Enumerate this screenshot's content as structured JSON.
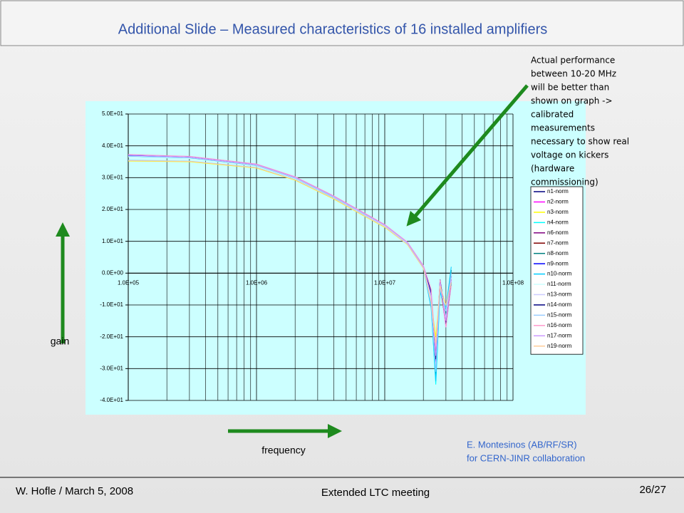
{
  "slide": {
    "title": "Additional Slide – Measured characteristics of 16 installed amplifiers",
    "gain_label": "gain",
    "frequency_label": "frequency",
    "credit": [
      "E. Montesinos (AB/RF/SR)",
      "for CERN-JINR collaboration"
    ],
    "footer_left": "W. Hofle / March 5, 2008",
    "footer_center": "Extended LTC meeting",
    "footer_right": "26/27",
    "annotation": [
      "Actual performance",
      "between 10-20 MHz",
      "will be better than",
      "shown on graph ->",
      "calibrated",
      "measurements",
      "necessary to show real",
      "voltage on kickers",
      "(hardware",
      "commissioning)"
    ]
  },
  "chart_data": {
    "type": "line",
    "xscale": "log",
    "grid": true,
    "legend": "right",
    "x": [
      100000,
      300000,
      1000000,
      2000000,
      4000000,
      7000000,
      10000000,
      15000000,
      20000000,
      23000000,
      25000000,
      27000000,
      30000000,
      33000000
    ],
    "xlim": [
      100000,
      100000000
    ],
    "xticks": [
      {
        "value": 100000,
        "label": "1.0E+05"
      },
      {
        "value": 1000000,
        "label": "1.0E+06"
      },
      {
        "value": 10000000,
        "label": "1.0E+07"
      },
      {
        "value": 100000000,
        "label": "1.0E+08"
      }
    ],
    "ylim": [
      -40,
      50
    ],
    "yticks": [
      {
        "value": 50,
        "label": "5.0E+01"
      },
      {
        "value": 40,
        "label": "4.0E+01"
      },
      {
        "value": 30,
        "label": "3.0E+01"
      },
      {
        "value": 20,
        "label": "2.0E+01"
      },
      {
        "value": 10,
        "label": "1.0E+01"
      },
      {
        "value": 0,
        "label": "0.0E+00"
      },
      {
        "value": -10,
        "label": "-1.0E+01"
      },
      {
        "value": -20,
        "label": "-2.0E+01"
      },
      {
        "value": -30,
        "label": "-3.0E+01"
      },
      {
        "value": -40,
        "label": "-4.0E+01"
      }
    ],
    "series": [
      {
        "name": "n1-norm",
        "color": "#000080",
        "values": [
          37,
          36.4,
          34,
          30,
          24,
          18.5,
          15,
          9.5,
          2,
          -8,
          -30,
          -4,
          -15,
          -1
        ]
      },
      {
        "name": "n2-norm",
        "color": "#ff00ff",
        "values": [
          37.2,
          36.6,
          34.2,
          30.2,
          24.2,
          18.7,
          15.2,
          9.7,
          2.3,
          -6,
          -25,
          -3,
          -17,
          -2
        ]
      },
      {
        "name": "n3-norm",
        "color": "#ffff00",
        "values": [
          35.2,
          35,
          33,
          29.2,
          23.3,
          17.8,
          14.4,
          9,
          1.5,
          -9,
          -20,
          -5,
          -10,
          -3
        ]
      },
      {
        "name": "n4-norm",
        "color": "#00ffff",
        "values": [
          37,
          36.4,
          34,
          30,
          24,
          18.6,
          15.1,
          9.6,
          2.1,
          -10,
          -35,
          -6,
          -12,
          0
        ]
      },
      {
        "name": "n6-norm",
        "color": "#800080",
        "values": [
          36.8,
          36.2,
          33.8,
          29.8,
          23.8,
          18.4,
          14.9,
          9.4,
          1.8,
          -7,
          -28,
          -2,
          -14,
          -1
        ]
      },
      {
        "name": "n7-norm",
        "color": "#800000",
        "values": [
          37.1,
          36.5,
          34.1,
          30.1,
          24.1,
          18.6,
          15.1,
          9.6,
          2.2,
          -8,
          -27,
          -4,
          -16,
          -2
        ]
      },
      {
        "name": "n8-norm",
        "color": "#008080",
        "values": [
          36.9,
          36.3,
          33.9,
          29.9,
          23.9,
          18.4,
          14.9,
          9.4,
          1.9,
          -9,
          -32,
          -5,
          -13,
          1
        ]
      },
      {
        "name": "n9-norm",
        "color": "#0000ff",
        "values": [
          37,
          36.4,
          34,
          30,
          24,
          18.5,
          15,
          9.5,
          2,
          -7,
          -29,
          -3,
          -15,
          -1
        ]
      },
      {
        "name": "n10-norm",
        "color": "#00ccff",
        "values": [
          36.7,
          36.1,
          33.7,
          29.7,
          23.7,
          18.2,
          14.8,
          9.3,
          1.7,
          -11,
          -34,
          -6,
          -11,
          2
        ]
      },
      {
        "name": "n11-norm",
        "color": "#ccffff",
        "values": [
          36.5,
          36,
          33.6,
          29.6,
          23.6,
          18.1,
          14.7,
          9.2,
          1.6,
          -8,
          -26,
          -4,
          -12,
          -2
        ]
      },
      {
        "name": "n13-norm",
        "color": "#ccccff",
        "values": [
          36.8,
          36.3,
          33.9,
          29.9,
          23.9,
          18.4,
          14.9,
          9.5,
          2,
          -9,
          -30,
          -3,
          -14,
          -1
        ]
      },
      {
        "name": "n14-norm",
        "color": "#000080",
        "values": [
          37.2,
          36.6,
          34.2,
          30.2,
          24.2,
          18.7,
          15.2,
          9.7,
          2.2,
          -6,
          -27,
          -2,
          -16,
          -3
        ]
      },
      {
        "name": "n15-norm",
        "color": "#99ccff",
        "values": [
          35.5,
          35.2,
          33.2,
          29.4,
          23.5,
          18,
          14.6,
          9.1,
          1.6,
          -10,
          -31,
          -5,
          -12,
          0
        ]
      },
      {
        "name": "n16-norm",
        "color": "#ff99cc",
        "values": [
          37.3,
          36.7,
          34.3,
          30.3,
          24.3,
          18.8,
          15.3,
          9.8,
          2.4,
          -5,
          -24,
          -2,
          -17,
          -4
        ]
      },
      {
        "name": "n17-norm",
        "color": "#cc99ff",
        "values": [
          37.1,
          36.5,
          34.1,
          30.1,
          24.1,
          18.6,
          15.1,
          9.6,
          2.1,
          -7,
          -26,
          -3,
          -15,
          -2
        ]
      },
      {
        "name": "n19-norm",
        "color": "#ffcc99",
        "values": [
          35.3,
          35.1,
          33.1,
          29.3,
          23.4,
          17.9,
          14.5,
          9,
          1.5,
          -9,
          -22,
          -4,
          -10,
          -3
        ]
      }
    ]
  }
}
